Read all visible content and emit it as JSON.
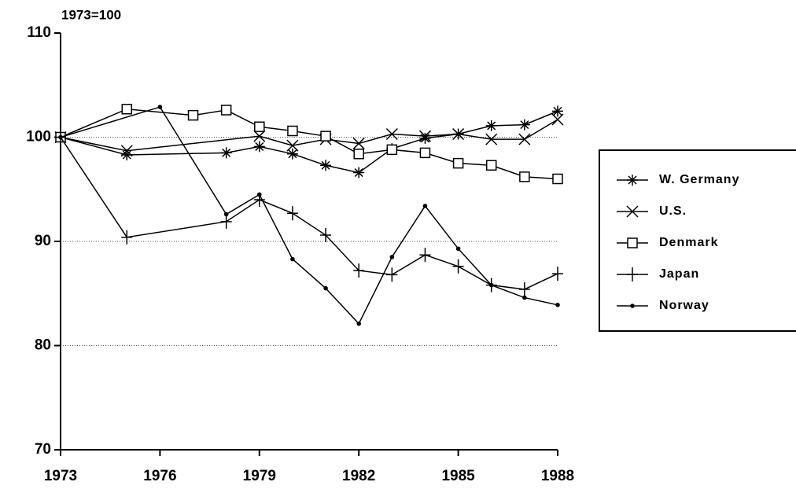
{
  "chart_data": {
    "type": "line",
    "y_label": "1973=100",
    "xlim": [
      1973,
      1988
    ],
    "xticks": [
      1973,
      1976,
      1979,
      1982,
      1985,
      1988
    ],
    "ylim": [
      70,
      110
    ],
    "yticks": [
      70,
      80,
      90,
      100,
      110
    ],
    "grid_values": [
      80,
      90,
      100
    ],
    "grid": true,
    "legend": "right",
    "series": [
      {
        "name": "W. Germany",
        "color": "#000000",
        "marker": "asterisk",
        "x": [
          1973,
          1975,
          1978,
          1979,
          1980,
          1981,
          1982,
          1983,
          1984,
          1985,
          1986,
          1987,
          1988
        ],
        "values": [
          100,
          98.3,
          98.5,
          99.1,
          98.4,
          97.3,
          96.6,
          98.9,
          99.9,
          100.3,
          101.1,
          101.2,
          102.5
        ]
      },
      {
        "name": "U.S.",
        "color": "#000000",
        "marker": "x",
        "x": [
          1973,
          1975,
          1979,
          1980,
          1981,
          1982,
          1983,
          1984,
          1985,
          1986,
          1987,
          1988
        ],
        "values": [
          100,
          98.7,
          100.1,
          99.2,
          99.8,
          99.4,
          100.3,
          100.1,
          100.3,
          99.8,
          99.8,
          101.7
        ]
      },
      {
        "name": "Denmark",
        "color": "#000000",
        "marker": "square",
        "x": [
          1973,
          1975,
          1977,
          1978,
          1979,
          1980,
          1981,
          1982,
          1983,
          1984,
          1985,
          1986,
          1987,
          1988
        ],
        "values": [
          100,
          102.7,
          102.1,
          102.6,
          101.0,
          100.6,
          100.1,
          98.4,
          98.8,
          98.5,
          97.5,
          97.3,
          96.2,
          96.0
        ]
      },
      {
        "name": "Japan",
        "color": "#000000",
        "marker": "plus",
        "x": [
          1973,
          1975,
          1978,
          1979,
          1980,
          1981,
          1982,
          1983,
          1984,
          1985,
          1986,
          1987,
          1988
        ],
        "values": [
          100,
          90.4,
          91.9,
          94.0,
          92.7,
          90.6,
          87.2,
          86.8,
          88.7,
          87.6,
          85.8,
          85.4,
          86.9
        ]
      },
      {
        "name": "Norway",
        "color": "#000000",
        "marker": "dot",
        "x": [
          1973,
          1976,
          1978,
          1979,
          1980,
          1981,
          1982,
          1983,
          1984,
          1985,
          1986,
          1987,
          1988
        ],
        "values": [
          100,
          102.9,
          92.6,
          94.5,
          88.3,
          85.5,
          82.1,
          88.5,
          93.4,
          89.3,
          85.8,
          84.6,
          83.9
        ]
      }
    ]
  }
}
